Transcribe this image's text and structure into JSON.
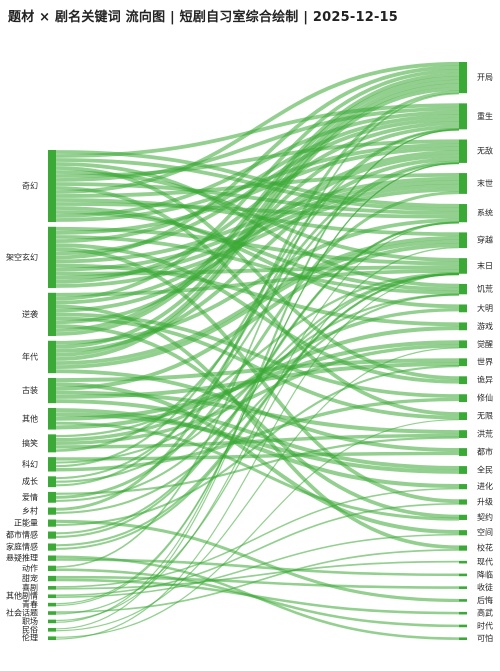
{
  "title": "题材 × 剧名关键词 流向图 | 短剧自习室综合绘制 | 2025-12-15",
  "colors": {
    "flow": "#3aa935",
    "node": "#3aa935"
  },
  "chart_data": {
    "type": "sankey",
    "sources": [
      {
        "name": "奇幻",
        "value": 20
      },
      {
        "name": "架空玄幻",
        "value": 17
      },
      {
        "name": "逆袭",
        "value": 12
      },
      {
        "name": "年代",
        "value": 9
      },
      {
        "name": "古装",
        "value": 7
      },
      {
        "name": "其他",
        "value": 6
      },
      {
        "name": "搞笑",
        "value": 5
      },
      {
        "name": "科幻",
        "value": 4
      },
      {
        "name": "成长",
        "value": 3
      },
      {
        "name": "爱情",
        "value": 3
      },
      {
        "name": "乡村",
        "value": 2
      },
      {
        "name": "正能量",
        "value": 2
      },
      {
        "name": "都市情感",
        "value": 2
      },
      {
        "name": "家庭情感",
        "value": 2
      },
      {
        "name": "悬疑推理",
        "value": 1.5
      },
      {
        "name": "动作",
        "value": 1.5
      },
      {
        "name": "甜宠",
        "value": 1.5
      },
      {
        "name": "喜剧",
        "value": 1
      },
      {
        "name": "其他剧情",
        "value": 1
      },
      {
        "name": "青春",
        "value": 1
      },
      {
        "name": "社会话题",
        "value": 1
      },
      {
        "name": "职场",
        "value": 1
      },
      {
        "name": "民俗",
        "value": 1
      },
      {
        "name": "伦理",
        "value": 1
      }
    ],
    "targets": [
      {
        "name": "开局",
        "value": 12
      },
      {
        "name": "重生",
        "value": 10
      },
      {
        "name": "无敌",
        "value": 9
      },
      {
        "name": "末世",
        "value": 8
      },
      {
        "name": "系统",
        "value": 7
      },
      {
        "name": "穿越",
        "value": 6
      },
      {
        "name": "末日",
        "value": 6
      },
      {
        "name": "饥荒",
        "value": 4
      },
      {
        "name": "大明",
        "value": 3
      },
      {
        "name": "游戏",
        "value": 3
      },
      {
        "name": "觉醒",
        "value": 3
      },
      {
        "name": "世界",
        "value": 3
      },
      {
        "name": "诡异",
        "value": 3
      },
      {
        "name": "修仙",
        "value": 3
      },
      {
        "name": "无限",
        "value": 3
      },
      {
        "name": "洪荒",
        "value": 3
      },
      {
        "name": "都市",
        "value": 3
      },
      {
        "name": "全民",
        "value": 3
      },
      {
        "name": "进化",
        "value": 2
      },
      {
        "name": "升级",
        "value": 2
      },
      {
        "name": "契约",
        "value": 2
      },
      {
        "name": "空间",
        "value": 2
      },
      {
        "name": "校花",
        "value": 2
      },
      {
        "name": "现代",
        "value": 1
      },
      {
        "name": "降临",
        "value": 1
      },
      {
        "name": "收徒",
        "value": 1
      },
      {
        "name": "后悔",
        "value": 1
      },
      {
        "name": "高武",
        "value": 1
      },
      {
        "name": "时代",
        "value": 1
      },
      {
        "name": "可怕",
        "value": 1
      }
    ]
  }
}
